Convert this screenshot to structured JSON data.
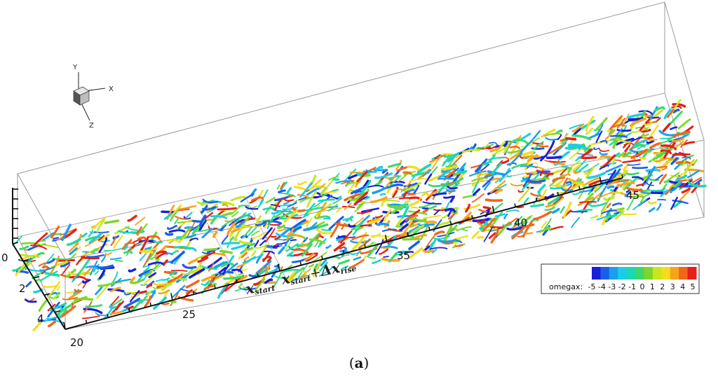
{
  "axes_triad": {
    "y_label": "Y",
    "x_label": "X",
    "z_label": "Z"
  },
  "streamwise_ticks": [
    "20",
    "25",
    "35",
    "40",
    "45"
  ],
  "spanwise_ticks": [
    "0",
    "2",
    "4"
  ],
  "markers": {
    "start": {
      "base": "x",
      "sub": "start"
    },
    "rise": {
      "base": "x",
      "sub": "start",
      "plus": "+",
      "delta": "Δx",
      "sub2": "rise"
    }
  },
  "legend": {
    "variable": "omegax:",
    "ticks": [
      "-5",
      "-4",
      "-3",
      "-2",
      "-1",
      "0",
      "1",
      "2",
      "3",
      "4",
      "5"
    ],
    "colors": [
      "#1a1fd8",
      "#1a5ee8",
      "#1a9ef0",
      "#19cde8",
      "#1ad9b0",
      "#3ed86a",
      "#7ed62a",
      "#c7e61e",
      "#f4dc1e",
      "#f6a41a",
      "#f2661a",
      "#e3201a"
    ]
  },
  "caption": {
    "open": "(",
    "letter": "a",
    "close": ")"
  }
}
